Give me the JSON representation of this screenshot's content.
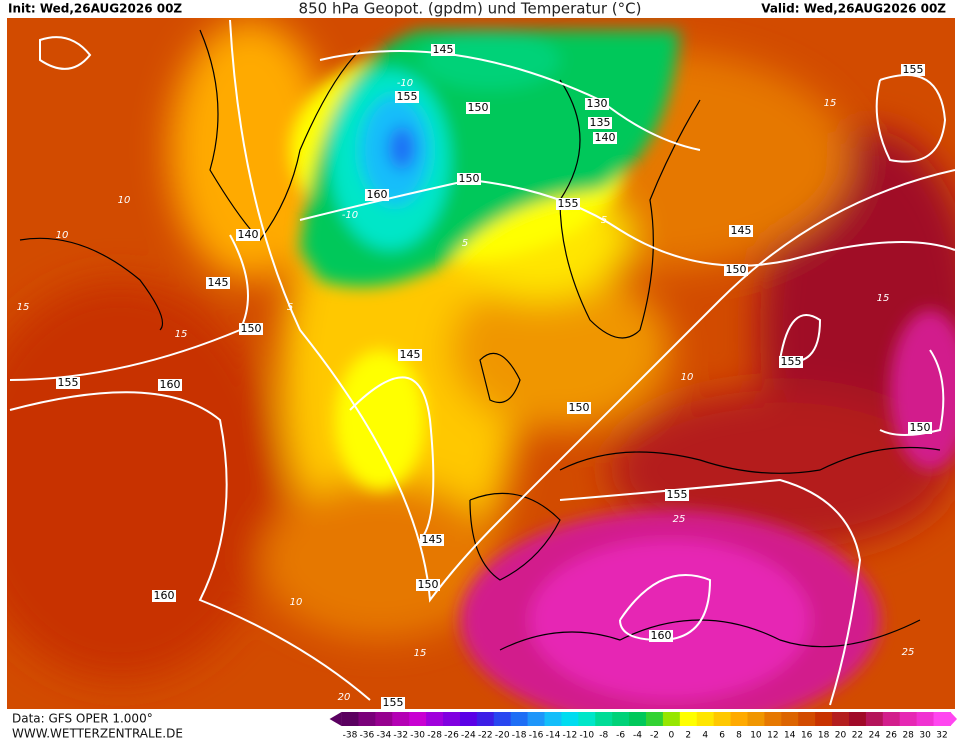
{
  "header": {
    "init": "Init: Wed,26AUG2026 00Z",
    "title": "850 hPa Geopot. (gpdm) und Temperatur (°C)",
    "valid": "Valid: Wed,26AUG2026 00Z"
  },
  "map": {
    "geopotential_labels": [
      "145",
      "155",
      "150",
      "130",
      "135",
      "140",
      "160",
      "150",
      "155",
      "145",
      "150",
      "155",
      "140",
      "145",
      "150",
      "155",
      "160",
      "145",
      "150",
      "155",
      "150",
      "155",
      "145",
      "150",
      "160",
      "160",
      "155"
    ],
    "temperature_labels": [
      "-10",
      "-10",
      "10",
      "10",
      "15",
      "15",
      "5",
      "5",
      "5",
      "15",
      "15",
      "10",
      "25",
      "10",
      "15",
      "20",
      "25"
    ]
  },
  "legend": {
    "ticks": [
      -38,
      -36,
      -34,
      -32,
      -30,
      -28,
      -26,
      -24,
      -22,
      -20,
      -18,
      -16,
      -14,
      -12,
      -10,
      -8,
      -6,
      -4,
      -2,
      0,
      2,
      4,
      6,
      8,
      10,
      12,
      14,
      16,
      18,
      20,
      22,
      24,
      26,
      28,
      30,
      32
    ],
    "colors": [
      "#5a0060",
      "#7a007a",
      "#96008f",
      "#b400b4",
      "#c800d2",
      "#a000dc",
      "#8000e0",
      "#5a00e6",
      "#3c1ee6",
      "#2846f0",
      "#1e6ef5",
      "#1e96fa",
      "#14befa",
      "#00dcf0",
      "#00e6c8",
      "#00dc96",
      "#00d278",
      "#00c85a",
      "#32d232",
      "#96e600",
      "#ffff00",
      "#ffe600",
      "#ffc800",
      "#ffaa00",
      "#f09600",
      "#e67800",
      "#dc6400",
      "#d24b00",
      "#c83200",
      "#b41e1e",
      "#a00a28",
      "#b4145a",
      "#d21e8c",
      "#e628b4",
      "#f032d2",
      "#ff46f0"
    ]
  },
  "footer": {
    "data": "Data: GFS OPER 1.000°",
    "site": "WWW.WETTERZENTRALE.DE"
  }
}
